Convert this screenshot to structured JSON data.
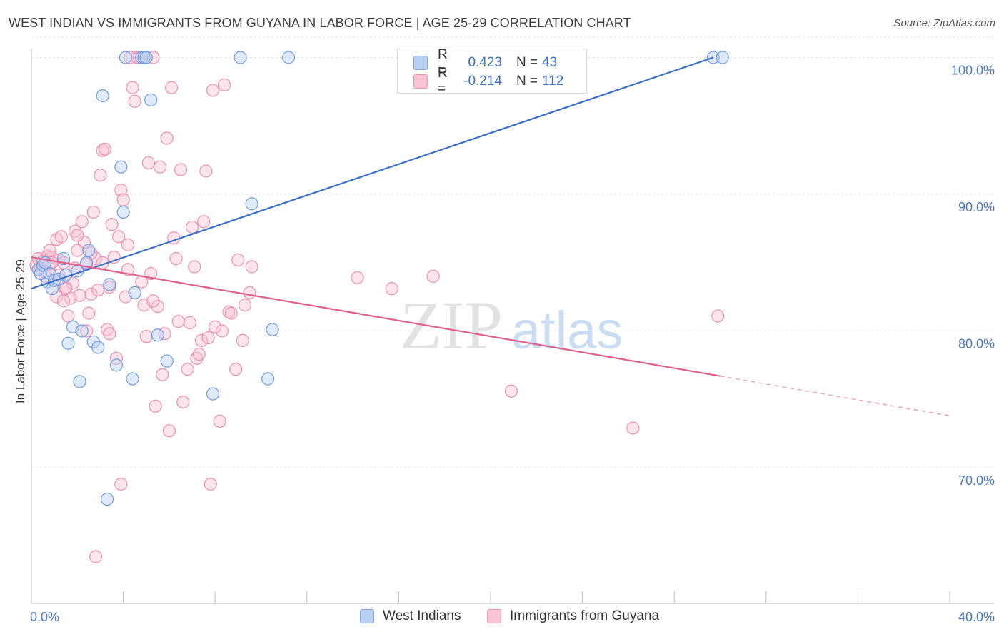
{
  "title": "WEST INDIAN VS IMMIGRANTS FROM GUYANA IN LABOR FORCE | AGE 25-29 CORRELATION CHART",
  "source": "Source: ZipAtlas.com",
  "watermark": {
    "zip": "ZIP",
    "atlas": "atlas"
  },
  "colors": {
    "blue": "#3a6fc8",
    "blue_fill": "#b8d0f4",
    "pink": "#e0608e",
    "pink_fill": "#f8c4d4",
    "value_text": "#3a6fc8"
  },
  "legend": {
    "rows": [
      {
        "r_label": "R =",
        "r_value": "0.423",
        "n_label": "N =",
        "n_value": "43"
      },
      {
        "r_label": "R =",
        "r_value": "-0.214",
        "n_label": "N =",
        "n_value": "112"
      }
    ]
  },
  "bottom_legend": [
    "West Indians",
    "Immigrants from Guyana"
  ],
  "chart_data": {
    "type": "scatter",
    "title": "WEST INDIAN VS IMMIGRANTS FROM GUYANA IN LABOR FORCE | AGE 25-29 CORRELATION CHART",
    "xlabel": "",
    "ylabel": "In Labor Force | Age 25-29",
    "xlim": [
      0,
      40
    ],
    "ylim": [
      61,
      101.5
    ],
    "x_tick_labels": [
      {
        "v": 0,
        "label": "0.0%"
      },
      {
        "v": 40,
        "label": "40.0%"
      }
    ],
    "y_ticks": [
      {
        "v": 70,
        "label": "70.0%"
      },
      {
        "v": 80,
        "label": "80.0%"
      },
      {
        "v": 90,
        "label": "90.0%"
      },
      {
        "v": 100,
        "label": "100.0%"
      }
    ],
    "series": [
      {
        "name": "West Indians",
        "R": 0.423,
        "N": 43,
        "trend": {
          "x0": 0.0,
          "y0": 83.1,
          "x1": 29.7,
          "y1": 100.0
        },
        "points": [
          [
            0.3,
            84.5
          ],
          [
            0.4,
            84.2
          ],
          [
            0.5,
            84.8
          ],
          [
            0.6,
            85.0
          ],
          [
            0.7,
            83.6
          ],
          [
            0.8,
            84.2
          ],
          [
            0.9,
            83.1
          ],
          [
            1.0,
            83.7
          ],
          [
            1.2,
            83.8
          ],
          [
            1.4,
            85.3
          ],
          [
            1.5,
            84.1
          ],
          [
            1.6,
            79.1
          ],
          [
            1.8,
            80.3
          ],
          [
            2.0,
            84.4
          ],
          [
            2.1,
            76.3
          ],
          [
            2.2,
            80.0
          ],
          [
            2.4,
            85.0
          ],
          [
            2.5,
            85.9
          ],
          [
            2.7,
            79.2
          ],
          [
            2.9,
            78.8
          ],
          [
            3.1,
            97.2
          ],
          [
            3.3,
            67.7
          ],
          [
            3.4,
            83.4
          ],
          [
            3.7,
            77.5
          ],
          [
            3.9,
            92.0
          ],
          [
            4.0,
            88.7
          ],
          [
            4.4,
            76.5
          ],
          [
            4.5,
            82.8
          ],
          [
            4.1,
            100.0
          ],
          [
            4.8,
            100.0
          ],
          [
            4.9,
            100.0
          ],
          [
            5.0,
            100.0
          ],
          [
            5.2,
            96.9
          ],
          [
            5.5,
            79.7
          ],
          [
            5.9,
            77.8
          ],
          [
            7.9,
            75.4
          ],
          [
            9.1,
            100.0
          ],
          [
            9.6,
            89.3
          ],
          [
            10.3,
            76.5
          ],
          [
            10.5,
            80.1
          ],
          [
            11.2,
            100.0
          ],
          [
            29.7,
            100.0
          ],
          [
            30.1,
            100.0
          ]
        ]
      },
      {
        "name": "Immigrants from Guyana",
        "R": -0.214,
        "N": 112,
        "trend": {
          "x0": 0.0,
          "y0": 85.4,
          "x1": 30.0,
          "y1": 76.7,
          "dash_x1": 40.0,
          "dash_y1": 73.8
        },
        "points": [
          [
            0.2,
            84.8
          ],
          [
            0.3,
            85.3
          ],
          [
            0.4,
            84.6
          ],
          [
            0.5,
            85.1
          ],
          [
            0.6,
            84.0
          ],
          [
            0.7,
            85.5
          ],
          [
            0.8,
            84.9
          ],
          [
            0.9,
            85.4
          ],
          [
            1.0,
            83.7
          ],
          [
            1.1,
            86.7
          ],
          [
            1.2,
            85.2
          ],
          [
            1.3,
            86.9
          ],
          [
            1.4,
            85.0
          ],
          [
            1.5,
            83.2
          ],
          [
            1.6,
            81.1
          ],
          [
            1.7,
            82.4
          ],
          [
            1.8,
            83.5
          ],
          [
            1.9,
            87.3
          ],
          [
            2.0,
            85.9
          ],
          [
            2.1,
            82.6
          ],
          [
            2.2,
            88.0
          ],
          [
            2.3,
            86.5
          ],
          [
            2.4,
            84.9
          ],
          [
            2.5,
            81.3
          ],
          [
            2.6,
            82.7
          ],
          [
            2.7,
            88.7
          ],
          [
            2.8,
            85.3
          ],
          [
            2.9,
            83.0
          ],
          [
            3.0,
            91.4
          ],
          [
            3.1,
            93.2
          ],
          [
            3.2,
            93.3
          ],
          [
            3.3,
            80.1
          ],
          [
            3.4,
            79.8
          ],
          [
            3.5,
            87.8
          ],
          [
            3.6,
            85.4
          ],
          [
            3.7,
            78.0
          ],
          [
            3.8,
            86.9
          ],
          [
            3.9,
            90.3
          ],
          [
            4.0,
            89.6
          ],
          [
            4.1,
            82.5
          ],
          [
            4.2,
            86.3
          ],
          [
            4.3,
            100.0
          ],
          [
            4.4,
            97.8
          ],
          [
            4.5,
            96.8
          ],
          [
            4.6,
            100.0
          ],
          [
            4.7,
            100.0
          ],
          [
            4.8,
            83.6
          ],
          [
            4.9,
            81.9
          ],
          [
            5.0,
            79.6
          ],
          [
            5.1,
            92.3
          ],
          [
            5.2,
            84.2
          ],
          [
            5.3,
            100.0
          ],
          [
            5.4,
            74.5
          ],
          [
            5.5,
            81.8
          ],
          [
            5.6,
            92.0
          ],
          [
            5.7,
            76.8
          ],
          [
            5.8,
            79.8
          ],
          [
            5.9,
            94.1
          ],
          [
            6.0,
            72.7
          ],
          [
            6.1,
            97.8
          ],
          [
            6.2,
            86.8
          ],
          [
            6.3,
            85.3
          ],
          [
            6.5,
            91.8
          ],
          [
            6.6,
            74.8
          ],
          [
            6.8,
            77.2
          ],
          [
            6.9,
            80.6
          ],
          [
            7.0,
            87.6
          ],
          [
            7.1,
            84.7
          ],
          [
            7.2,
            78.0
          ],
          [
            7.3,
            78.3
          ],
          [
            7.4,
            79.3
          ],
          [
            7.5,
            88.0
          ],
          [
            7.6,
            91.7
          ],
          [
            7.8,
            68.8
          ],
          [
            7.9,
            97.6
          ],
          [
            8.0,
            80.3
          ],
          [
            8.2,
            73.4
          ],
          [
            8.3,
            80.0
          ],
          [
            8.4,
            98.0
          ],
          [
            8.6,
            81.4
          ],
          [
            8.7,
            81.3
          ],
          [
            8.9,
            77.2
          ],
          [
            9.0,
            85.2
          ],
          [
            9.2,
            79.3
          ],
          [
            9.3,
            81.9
          ],
          [
            9.5,
            82.8
          ],
          [
            9.6,
            84.7
          ],
          [
            3.9,
            68.8
          ],
          [
            2.8,
            63.5
          ],
          [
            1.5,
            83.1
          ],
          [
            1.1,
            82.5
          ],
          [
            0.9,
            85.0
          ],
          [
            2.0,
            87.0
          ],
          [
            2.4,
            80.0
          ],
          [
            3.1,
            85.0
          ],
          [
            14.2,
            83.9
          ],
          [
            15.7,
            83.1
          ],
          [
            17.5,
            84.0
          ],
          [
            20.9,
            75.6
          ],
          [
            26.2,
            72.9
          ],
          [
            29.9,
            81.1
          ],
          [
            0.6,
            84.3
          ],
          [
            0.8,
            85.9
          ],
          [
            1.2,
            84.1
          ],
          [
            1.4,
            82.2
          ],
          [
            1.9,
            84.6
          ],
          [
            2.6,
            85.7
          ],
          [
            3.4,
            83.2
          ],
          [
            4.2,
            84.5
          ],
          [
            5.3,
            82.2
          ],
          [
            6.4,
            80.7
          ],
          [
            7.7,
            79.5
          ]
        ]
      }
    ]
  }
}
